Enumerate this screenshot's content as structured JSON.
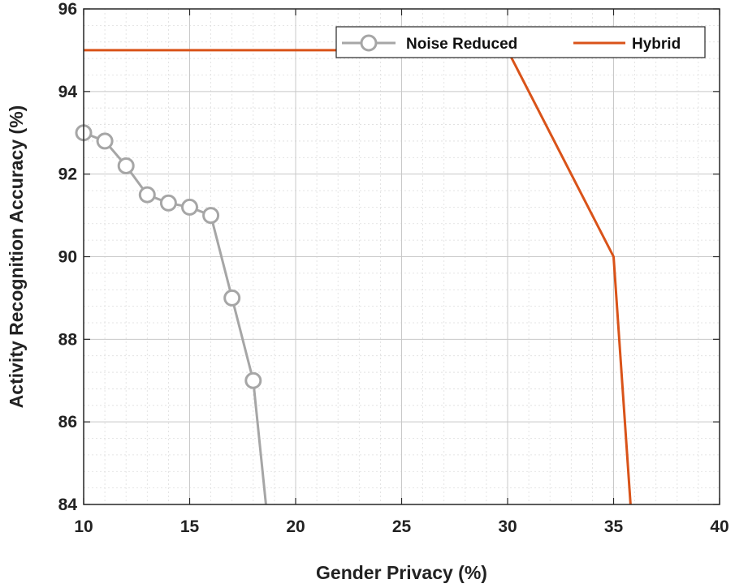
{
  "chart_data": {
    "type": "line",
    "xlabel": "Gender Privacy (%)",
    "ylabel": "Activity Recognition Accuracy (%)",
    "xlim": [
      10,
      40
    ],
    "ylim": [
      84,
      96
    ],
    "xticks": [
      "10",
      "15",
      "20",
      "25",
      "30",
      "35",
      "40"
    ],
    "yticks": [
      "84",
      "86",
      "88",
      "90",
      "92",
      "94",
      "96"
    ],
    "grid": "major and minor",
    "legend_position": "top-right",
    "series": [
      {
        "name": "Noise Reduced",
        "color": "#a6a6a6",
        "marker": "circle",
        "x": [
          10,
          11,
          12,
          13,
          14,
          15,
          16,
          17,
          18,
          18.6
        ],
        "y": [
          93,
          92.8,
          92.2,
          91.5,
          91.3,
          91.2,
          91,
          89,
          87,
          84
        ],
        "marked": [
          true,
          true,
          true,
          true,
          true,
          true,
          true,
          true,
          true,
          false
        ]
      },
      {
        "name": "Hybrid",
        "color": "#d95319",
        "marker": "none",
        "x": [
          10,
          30,
          35,
          35.8
        ],
        "y": [
          95,
          95,
          90,
          84
        ]
      }
    ]
  }
}
